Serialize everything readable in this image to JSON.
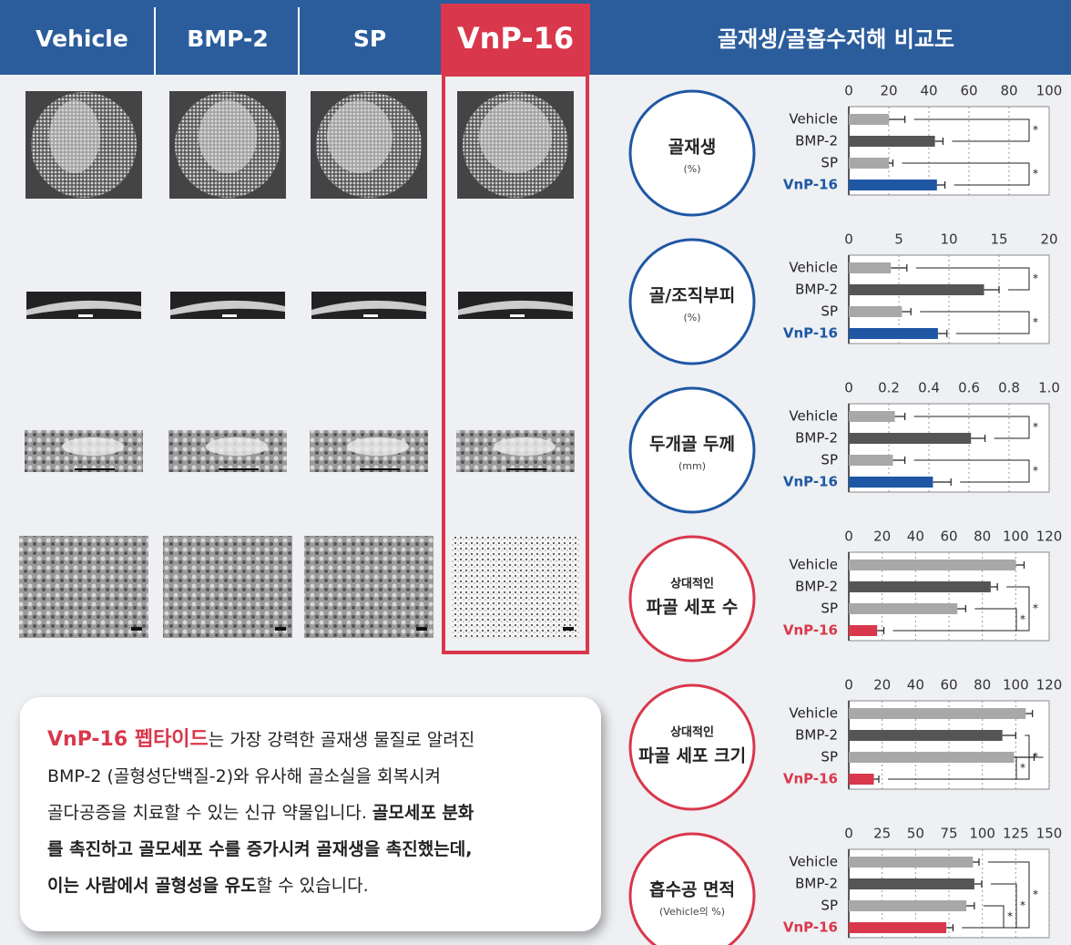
{
  "header": {
    "columns": [
      "Vehicle",
      "BMP-2",
      "SP",
      "VnP-16"
    ],
    "comparison_title": "골재생/골흡수저해 비교도"
  },
  "text_box": {
    "lines": [
      [
        {
          "text": "VnP-16 펩타이드",
          "style": "red-bold"
        },
        {
          "text": "는 가장 강력한 골재생 물질로 알려진",
          "style": "normal"
        }
      ],
      [
        {
          "text": "BMP-2 (골형성단백질-2)와 유사해 골소실을 회복시켜",
          "style": "normal"
        }
      ],
      [
        {
          "text": "골다공증을 치료할 수 있는 신규 약물입니다. ",
          "style": "normal"
        },
        {
          "text": "골모세포 분화",
          "style": "bold"
        }
      ],
      [
        {
          "text": "를 촉진하고 골모세포 수를 증가시켜 골재생을 촉진했는데,",
          "style": "bold"
        }
      ],
      [
        {
          "text": "이는 사람에서 골형성을 유도",
          "style": "bold"
        },
        {
          "text": "할 수 있습니다.",
          "style": "normal"
        }
      ]
    ]
  },
  "chart_data": [
    {
      "type": "bar",
      "orientation": "horizontal",
      "title": "골재생",
      "unit": "(%)",
      "accent": "#1f57a4",
      "categories": [
        "Vehicle",
        "BMP-2",
        "SP",
        "VnP-16"
      ],
      "values": [
        20,
        43,
        20,
        44
      ],
      "errors": [
        8,
        4,
        2,
        4
      ],
      "colors": [
        "#a8a8a8",
        "#555555",
        "#a8a8a8",
        "#1f57a4"
      ],
      "xlim": [
        0,
        100
      ],
      "xticks": [
        0,
        20,
        40,
        60,
        80,
        100
      ],
      "grid": true,
      "significance": [
        {
          "from": 0,
          "to": 1,
          "label": "*"
        },
        {
          "from": 2,
          "to": 3,
          "label": "*"
        }
      ]
    },
    {
      "type": "bar",
      "orientation": "horizontal",
      "title": "골/조직부피",
      "unit": "(%)",
      "accent": "#1f57a4",
      "categories": [
        "Vehicle",
        "BMP-2",
        "SP",
        "VnP-16"
      ],
      "values": [
        4.2,
        13.5,
        5.3,
        8.9
      ],
      "errors": [
        1.6,
        1.5,
        0.9,
        0.9
      ],
      "colors": [
        "#a8a8a8",
        "#555555",
        "#a8a8a8",
        "#1f57a4"
      ],
      "xlim": [
        0,
        20
      ],
      "xticks": [
        0,
        5,
        10,
        15,
        20
      ],
      "grid": true,
      "significance": [
        {
          "from": 0,
          "to": 1,
          "label": "*"
        },
        {
          "from": 2,
          "to": 3,
          "label": "*"
        }
      ]
    },
    {
      "type": "bar",
      "orientation": "horizontal",
      "title": "두개골 두께",
      "unit": "(mm)",
      "accent": "#1f57a4",
      "categories": [
        "Vehicle",
        "BMP-2",
        "SP",
        "VnP-16"
      ],
      "values": [
        0.23,
        0.61,
        0.22,
        0.42
      ],
      "errors": [
        0.05,
        0.07,
        0.06,
        0.09
      ],
      "colors": [
        "#a8a8a8",
        "#555555",
        "#a8a8a8",
        "#1f57a4"
      ],
      "xlim": [
        0,
        1
      ],
      "xticks": [
        0,
        0.2,
        0.4,
        0.6,
        0.8,
        {
          "value": 1,
          "label": "1.0"
        }
      ],
      "grid": true,
      "significance": [
        {
          "from": 0,
          "to": 1,
          "label": "*"
        },
        {
          "from": 2,
          "to": 3,
          "label": "*"
        }
      ]
    },
    {
      "type": "bar",
      "orientation": "horizontal",
      "pretitle": "상대적인",
      "title": "파골 세포 수",
      "accent": "#d9374b",
      "categories": [
        "Vehicle",
        "BMP-2",
        "SP",
        "VnP-16"
      ],
      "values": [
        100,
        85,
        65,
        17
      ],
      "errors": [
        5,
        4,
        5,
        4
      ],
      "colors": [
        "#a8a8a8",
        "#555555",
        "#a8a8a8",
        "#d9374b"
      ],
      "xlim": [
        0,
        120
      ],
      "xticks": [
        0,
        20,
        40,
        60,
        80,
        100,
        120
      ],
      "grid": true,
      "significance": [
        {
          "from": 1,
          "to": 3,
          "label": "*"
        },
        {
          "from": 2,
          "to": 3,
          "label": "*"
        }
      ]
    },
    {
      "type": "bar",
      "orientation": "horizontal",
      "pretitle": "상대적인",
      "title": "파골 세포 크기",
      "accent": "#d9374b",
      "categories": [
        "Vehicle",
        "BMP-2",
        "SP",
        "VnP-16"
      ],
      "values": [
        106,
        92,
        99,
        15
      ],
      "errors": [
        4,
        8,
        12,
        3
      ],
      "colors": [
        "#a8a8a8",
        "#555555",
        "#a8a8a8",
        "#d9374b"
      ],
      "xlim": [
        0,
        120
      ],
      "xticks": [
        0,
        20,
        40,
        60,
        80,
        100,
        120
      ],
      "grid": true,
      "significance": [
        {
          "from": 1,
          "to": 3,
          "label": "*"
        },
        {
          "from": 2,
          "to": 3,
          "label": "*"
        }
      ]
    },
    {
      "type": "bar",
      "orientation": "horizontal",
      "title": "흡수공 면적",
      "unit": "(Vehicle의 %)",
      "accent": "#d9374b",
      "categories": [
        "Vehicle",
        "BMP-2",
        "SP",
        "VnP-16"
      ],
      "values": [
        93,
        94,
        88,
        73
      ],
      "errors": [
        4.5,
        5.5,
        6,
        5
      ],
      "colors": [
        "#a8a8a8",
        "#555555",
        "#a8a8a8",
        "#d9374b"
      ],
      "xlim": [
        0,
        150
      ],
      "xticks": [
        0,
        25,
        50,
        75,
        100,
        125,
        150
      ],
      "grid": true,
      "significance": [
        {
          "from": 0,
          "to": 3,
          "label": "*"
        },
        {
          "from": 1,
          "to": 3,
          "label": "*"
        },
        {
          "from": 2,
          "to": 3,
          "label": "*"
        }
      ]
    }
  ]
}
